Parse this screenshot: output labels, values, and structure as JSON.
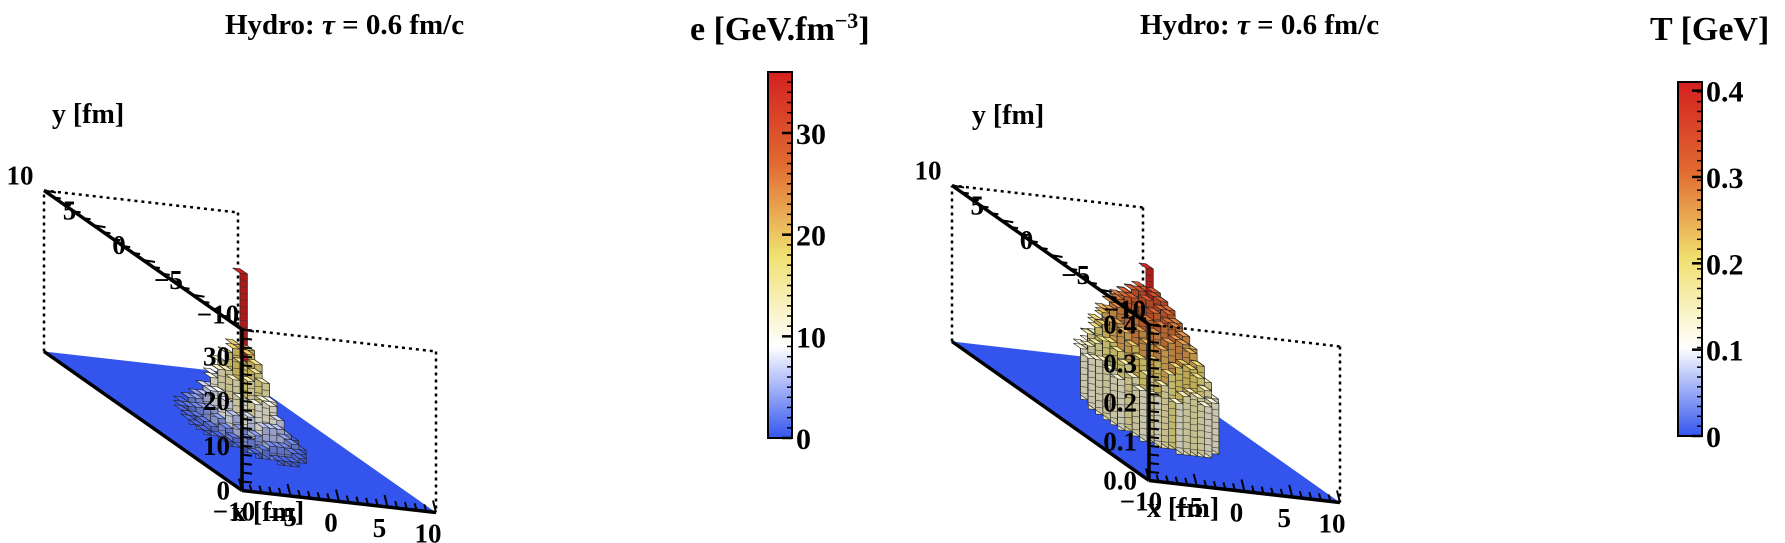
{
  "chart_data": [
    {
      "type": "bar3d",
      "title_prefix": "Hydro:",
      "title_tau": "τ",
      "title_suffix": "= 0.6 fm/c",
      "xlabel": "x [fm]",
      "ylabel": "y [fm]",
      "colorbar_label": "e [GeV.fm",
      "colorbar_label_sup": "−3",
      "colorbar_label_close": "]",
      "xlim": [
        -10,
        10
      ],
      "ylim": [
        -10,
        10
      ],
      "zlim": [
        0,
        36
      ],
      "x_ticks": [
        "−10",
        "−5",
        "0",
        "5",
        "10"
      ],
      "y_ticks": [
        "−10",
        "−5",
        "0",
        "5",
        "10"
      ],
      "z_ticks": [
        "0",
        "10",
        "20",
        "30"
      ],
      "z_tick_values": [
        0,
        10,
        20,
        30
      ],
      "colorbar_ticks": [
        "0",
        "10",
        "20",
        "30"
      ],
      "colorbar_tick_values": [
        0,
        10,
        20,
        30
      ],
      "colorbar_max": 36,
      "grid_x": [
        -5.25,
        -4.5,
        -3.75,
        -3.0,
        -2.25,
        -1.5,
        -0.75,
        0.0,
        0.75,
        1.5,
        2.25,
        3.0,
        3.75,
        4.5,
        5.25
      ],
      "grid_y": [
        -5.25,
        -4.5,
        -3.75,
        -3.0,
        -2.25,
        -1.5,
        -0.75,
        0.0,
        0.75,
        1.5,
        2.25,
        3.0,
        3.75,
        4.5,
        5.25
      ],
      "values": [
        [
          0,
          0,
          0,
          0,
          0,
          0,
          0,
          0,
          0,
          0,
          0,
          0,
          0,
          0,
          0
        ],
        [
          0,
          0,
          0,
          0,
          0,
          0,
          1,
          1,
          1,
          0,
          0,
          0,
          0,
          0,
          0
        ],
        [
          0,
          0,
          0,
          0,
          1,
          2,
          3,
          3,
          3,
          2,
          1,
          0,
          0,
          0,
          0
        ],
        [
          0,
          0,
          0,
          1,
          3,
          4,
          6,
          6,
          6,
          4,
          3,
          1,
          0,
          0,
          0
        ],
        [
          0,
          0,
          1,
          2,
          4,
          7,
          10,
          11,
          10,
          7,
          4,
          2,
          1,
          0,
          0
        ],
        [
          0,
          0,
          1,
          3,
          6,
          10,
          14,
          16,
          14,
          10,
          6,
          3,
          1,
          0,
          0
        ],
        [
          0,
          1,
          2,
          4,
          8,
          13,
          17,
          19,
          17,
          13,
          8,
          4,
          2,
          1,
          0
        ],
        [
          0,
          1,
          2,
          5,
          9,
          14,
          19,
          36,
          19,
          14,
          9,
          5,
          2,
          1,
          0
        ],
        [
          0,
          1,
          2,
          4,
          8,
          13,
          17,
          19,
          17,
          13,
          8,
          4,
          2,
          1,
          0
        ],
        [
          0,
          0,
          1,
          3,
          6,
          10,
          14,
          16,
          14,
          10,
          6,
          3,
          1,
          0,
          0
        ],
        [
          0,
          0,
          1,
          2,
          4,
          7,
          10,
          11,
          10,
          7,
          4,
          2,
          1,
          0,
          0
        ],
        [
          0,
          0,
          0,
          1,
          3,
          4,
          6,
          6,
          6,
          4,
          3,
          1,
          0,
          0,
          0
        ],
        [
          0,
          0,
          0,
          0,
          1,
          2,
          3,
          3,
          3,
          2,
          1,
          0,
          0,
          0,
          0
        ],
        [
          0,
          0,
          0,
          0,
          0,
          0,
          1,
          1,
          1,
          0,
          0,
          0,
          0,
          0,
          0
        ],
        [
          0,
          0,
          0,
          0,
          0,
          0,
          0,
          0,
          0,
          0,
          0,
          0,
          0,
          0,
          0
        ]
      ]
    },
    {
      "type": "bar3d",
      "title_prefix": "Hydro:",
      "title_tau": "τ",
      "title_suffix": "= 0.6 fm/c",
      "xlabel": "x [fm]",
      "ylabel": "y [fm]",
      "colorbar_label": "T [GeV]",
      "colorbar_label_sup": "",
      "colorbar_label_close": "",
      "xlim": [
        -10,
        10
      ],
      "ylim": [
        -10,
        10
      ],
      "zlim": [
        0,
        0.4
      ],
      "x_ticks": [
        "−10",
        "−5",
        "0",
        "5",
        "10"
      ],
      "y_ticks": [
        "−10",
        "−5",
        "0",
        "5",
        "10"
      ],
      "z_ticks": [
        "0.0",
        "0.1",
        "0.2",
        "0.3",
        "0.4"
      ],
      "z_tick_values": [
        0,
        0.1,
        0.2,
        0.3,
        0.4
      ],
      "colorbar_ticks": [
        "0",
        "0.1",
        "0.2",
        "0.3",
        "0.4"
      ],
      "colorbar_tick_values": [
        0,
        0.1,
        0.2,
        0.3,
        0.4
      ],
      "colorbar_max": 0.41,
      "grid_x": [
        -5.25,
        -4.5,
        -3.75,
        -3.0,
        -2.25,
        -1.5,
        -0.75,
        0.0,
        0.75,
        1.5,
        2.25,
        3.0,
        3.75,
        4.5,
        5.25
      ],
      "grid_y": [
        -5.25,
        -4.5,
        -3.75,
        -3.0,
        -2.25,
        -1.5,
        -0.75,
        0.0,
        0.75,
        1.5,
        2.25,
        3.0,
        3.75,
        4.5,
        5.25
      ],
      "values": [
        [
          0,
          0,
          0,
          0,
          0,
          0,
          0,
          0,
          0,
          0,
          0,
          0,
          0,
          0,
          0
        ],
        [
          0,
          0,
          0,
          0,
          0,
          0.13,
          0.15,
          0.16,
          0.15,
          0.13,
          0,
          0,
          0,
          0,
          0
        ],
        [
          0,
          0,
          0,
          0.13,
          0.16,
          0.19,
          0.21,
          0.22,
          0.21,
          0.19,
          0.16,
          0.13,
          0,
          0,
          0
        ],
        [
          0,
          0,
          0.13,
          0.17,
          0.21,
          0.24,
          0.26,
          0.27,
          0.26,
          0.24,
          0.21,
          0.17,
          0.13,
          0,
          0
        ],
        [
          0,
          0,
          0.15,
          0.2,
          0.24,
          0.27,
          0.29,
          0.3,
          0.29,
          0.27,
          0.24,
          0.2,
          0.15,
          0,
          0
        ],
        [
          0,
          0.13,
          0.17,
          0.22,
          0.26,
          0.29,
          0.31,
          0.32,
          0.31,
          0.29,
          0.26,
          0.22,
          0.17,
          0.13,
          0
        ],
        [
          0,
          0.14,
          0.19,
          0.24,
          0.28,
          0.31,
          0.33,
          0.34,
          0.33,
          0.31,
          0.28,
          0.24,
          0.19,
          0.14,
          0
        ],
        [
          0,
          0.15,
          0.2,
          0.25,
          0.29,
          0.32,
          0.34,
          0.4,
          0.34,
          0.32,
          0.29,
          0.25,
          0.2,
          0.15,
          0
        ],
        [
          0,
          0.14,
          0.19,
          0.24,
          0.28,
          0.31,
          0.33,
          0.34,
          0.33,
          0.31,
          0.28,
          0.24,
          0.19,
          0.14,
          0
        ],
        [
          0,
          0.13,
          0.17,
          0.22,
          0.26,
          0.29,
          0.31,
          0.32,
          0.31,
          0.29,
          0.26,
          0.22,
          0.17,
          0.13,
          0
        ],
        [
          0,
          0,
          0.15,
          0.2,
          0.24,
          0.27,
          0.29,
          0.3,
          0.29,
          0.27,
          0.24,
          0.2,
          0.15,
          0,
          0
        ],
        [
          0,
          0,
          0.13,
          0.17,
          0.21,
          0.24,
          0.26,
          0.27,
          0.26,
          0.24,
          0.21,
          0.17,
          0.13,
          0,
          0
        ],
        [
          0,
          0,
          0,
          0.13,
          0.16,
          0.19,
          0.21,
          0.22,
          0.21,
          0.19,
          0.16,
          0.13,
          0,
          0,
          0
        ],
        [
          0,
          0,
          0,
          0,
          0,
          0.13,
          0.15,
          0.16,
          0.15,
          0.13,
          0,
          0,
          0,
          0,
          0
        ],
        [
          0,
          0,
          0,
          0,
          0,
          0,
          0,
          0,
          0,
          0,
          0,
          0,
          0,
          0,
          0
        ]
      ]
    }
  ],
  "colormap": [
    "#3355ee",
    "#ffffff",
    "#f0e070",
    "#e06a30",
    "#d42020"
  ],
  "floor_color": "#3355ee"
}
